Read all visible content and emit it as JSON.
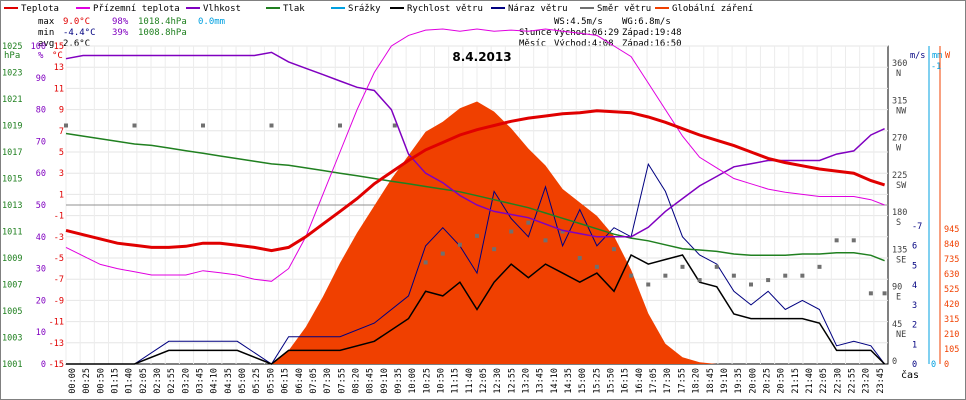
{
  "chart_data": {
    "type": "line",
    "title": "8.4.2013",
    "legend": [
      {
        "label": "Teplota",
        "color": "#e00000"
      },
      {
        "label": "Přízemní teplota",
        "color": "#e000e0"
      },
      {
        "label": "Vlhkost",
        "color": "#8000c0"
      },
      {
        "label": "Tlak",
        "color": "#208020"
      },
      {
        "label": "Srážky",
        "color": "#00a0e0"
      },
      {
        "label": "Rychlost větru",
        "color": "#000000"
      },
      {
        "label": "Náraz větru",
        "color": "#000080"
      },
      {
        "label": "Směr větru",
        "color": "#707070"
      },
      {
        "label": "Globální záření",
        "color": "#f04000"
      }
    ],
    "stats": {
      "max": {
        "label": "max",
        "temp": "9.0°C",
        "hum": "98%",
        "press": "1018.4hPa",
        "rain": "0.0mm"
      },
      "min": {
        "label": "min",
        "temp": "-4.4°C",
        "hum": "39%",
        "press": "1008.8hPa"
      },
      "avg": {
        "label": "avg",
        "temp": "2.6°C"
      },
      "ws": "WS:4.5m/s",
      "wg": "WG:6.8m/s",
      "sun": {
        "label": "Slunce",
        "rise": "Východ:06:29",
        "set": "Západ:19:48"
      },
      "moon": {
        "label": "Měsíc",
        "rise": "Východ:4:08",
        "set": "Západ:16:50"
      }
    },
    "axes": {
      "hpa": {
        "unit": "hPa",
        "ticks": [
          "1025",
          "1023",
          "1021",
          "1019",
          "1017",
          "1015",
          "1013",
          "1011",
          "1009",
          "1007",
          "1005",
          "1003",
          "1001"
        ],
        "range": [
          1001,
          1025
        ]
      },
      "pct": {
        "unit": "%",
        "ticks": [
          "100",
          "90",
          "80",
          "70",
          "60",
          "50",
          "40",
          "30",
          "20",
          "10",
          "0"
        ],
        "range": [
          0,
          100
        ]
      },
      "temp": {
        "unit": "°C",
        "ticks": [
          "15",
          "13",
          "11",
          "9",
          "7",
          "5",
          "3",
          "1",
          "-1",
          "-3",
          "-5",
          "-7",
          "-9",
          "-11",
          "-13",
          "-15"
        ],
        "range": [
          -15,
          15
        ]
      },
      "dir": {
        "ticks": [
          "360 N",
          "315 NW",
          "270 W",
          "225 SW",
          "180 S",
          "135 SE",
          "90 E",
          "45 NE",
          "0"
        ],
        "range": [
          0,
          360
        ]
      },
      "wind": {
        "unit": "m/s",
        "ticks": [
          "-7",
          "6",
          "5",
          "4",
          "3",
          "2",
          "1",
          "0"
        ],
        "range": [
          0,
          7
        ]
      },
      "rain": {
        "unit": "mm",
        "ticks": [
          "-1",
          "0"
        ],
        "range": [
          0,
          1
        ]
      },
      "rad": {
        "unit": "W",
        "ticks": [
          "945",
          "840",
          "735",
          "630",
          "525",
          "420",
          "315",
          "210",
          "105",
          "0"
        ],
        "range": [
          0,
          945
        ]
      }
    },
    "x_unit": "čas",
    "x_ticks": [
      "00:00",
      "00:25",
      "00:50",
      "01:15",
      "01:40",
      "02:05",
      "02:30",
      "02:55",
      "03:20",
      "03:45",
      "04:10",
      "04:35",
      "05:00",
      "05:25",
      "05:50",
      "06:15",
      "06:40",
      "07:05",
      "07:30",
      "07:55",
      "08:20",
      "08:45",
      "09:10",
      "09:35",
      "10:00",
      "10:25",
      "10:50",
      "11:15",
      "11:40",
      "12:05",
      "12:30",
      "12:55",
      "13:20",
      "13:45",
      "14:10",
      "14:35",
      "15:00",
      "15:25",
      "15:50",
      "16:15",
      "16:40",
      "17:05",
      "17:30",
      "17:55",
      "18:20",
      "18:45",
      "19:10",
      "19:35",
      "20:00",
      "20:25",
      "20:50",
      "21:15",
      "21:40",
      "22:05",
      "22:30",
      "22:55",
      "23:20",
      "23:45"
    ],
    "series": [
      {
        "name": "Teplota",
        "color": "#e00000",
        "x_hours": [
          0,
          0.5,
          1,
          1.5,
          2,
          2.5,
          3,
          3.5,
          4,
          4.5,
          5,
          5.5,
          6,
          6.5,
          7,
          7.5,
          8,
          8.5,
          9,
          9.5,
          10,
          10.5,
          11,
          11.5,
          12,
          12.5,
          13,
          13.5,
          14,
          14.5,
          15,
          15.5,
          16,
          16.5,
          17,
          17.5,
          18,
          18.5,
          19,
          19.5,
          20,
          20.5,
          21,
          21.5,
          22,
          22.5,
          23,
          23.5,
          23.9
        ],
        "values": [
          -2.4,
          -2.8,
          -3.2,
          -3.6,
          -3.8,
          -4.0,
          -4.0,
          -3.9,
          -3.6,
          -3.6,
          -3.8,
          -4.0,
          -4.3,
          -4.0,
          -3.0,
          -1.8,
          -0.6,
          0.6,
          2.0,
          3.1,
          4.2,
          5.2,
          5.9,
          6.6,
          7.1,
          7.5,
          7.9,
          8.2,
          8.4,
          8.6,
          8.7,
          8.9,
          8.8,
          8.7,
          8.3,
          7.8,
          7.2,
          6.6,
          6.1,
          5.6,
          5.0,
          4.4,
          4.0,
          3.7,
          3.4,
          3.2,
          3.0,
          2.3,
          1.9
        ]
      },
      {
        "name": "Přízemní teplota",
        "color": "#e000e0",
        "x_hours": [
          0,
          0.5,
          1,
          1.5,
          2,
          2.5,
          3,
          3.5,
          4,
          4.5,
          5,
          5.5,
          6,
          6.5,
          7,
          7.5,
          8,
          8.5,
          9,
          9.5,
          10,
          10.5,
          11,
          11.5,
          12,
          12.5,
          13,
          13.5,
          14,
          14.5,
          15,
          15.5,
          16,
          16.5,
          17,
          17.5,
          18,
          18.5,
          19,
          19.5,
          20,
          20.5,
          21,
          21.5,
          22,
          22.5,
          23,
          23.5,
          23.9
        ],
        "values": [
          -4.0,
          -4.8,
          -5.6,
          -6.0,
          -6.3,
          -6.6,
          -6.6,
          -6.6,
          -6.2,
          -6.4,
          -6.6,
          -7.0,
          -7.2,
          -6.0,
          -3.0,
          1.0,
          5.0,
          9.0,
          12.5,
          15.0,
          16.0,
          16.5,
          16.6,
          16.4,
          16.6,
          16.4,
          16.5,
          16.4,
          16.6,
          16.4,
          16.2,
          16.0,
          15.0,
          14.0,
          11.5,
          9.0,
          6.5,
          4.5,
          3.5,
          2.5,
          2.0,
          1.5,
          1.2,
          1.0,
          0.8,
          0.8,
          0.8,
          0.5,
          0.0
        ]
      },
      {
        "name": "Vlhkost",
        "color": "#8000c0",
        "x_hours": [
          0,
          0.5,
          1,
          1.5,
          2,
          2.5,
          3,
          3.5,
          4,
          4.5,
          5,
          5.5,
          6,
          6.5,
          7,
          7.5,
          8,
          8.5,
          9,
          9.5,
          10,
          10.5,
          11,
          11.5,
          12,
          12.5,
          13,
          13.5,
          14,
          14.5,
          15,
          15.5,
          16,
          16.5,
          17,
          17.5,
          18,
          18.5,
          19,
          19.5,
          20,
          20.5,
          21,
          21.5,
          22,
          22.5,
          23,
          23.5,
          23.9
        ],
        "values": [
          96,
          97,
          97,
          97,
          97,
          97,
          97,
          97,
          97,
          97,
          97,
          97,
          98,
          95,
          93,
          91,
          89,
          87,
          86,
          80,
          66,
          60,
          57,
          53,
          50,
          48,
          47,
          46,
          44,
          42,
          41,
          40,
          40,
          40,
          43,
          48,
          52,
          56,
          59,
          62,
          63,
          64,
          64,
          64,
          64,
          66,
          67,
          72,
          74
        ]
      },
      {
        "name": "Tlak",
        "color": "#208020",
        "x_hours": [
          0,
          0.5,
          1,
          1.5,
          2,
          2.5,
          3,
          3.5,
          4,
          4.5,
          5,
          5.5,
          6,
          6.5,
          7,
          7.5,
          8,
          8.5,
          9,
          9.5,
          10,
          10.5,
          11,
          11.5,
          12,
          12.5,
          13,
          13.5,
          14,
          14.5,
          15,
          15.5,
          16,
          16.5,
          17,
          17.5,
          18,
          18.5,
          19,
          19.5,
          20,
          20.5,
          21,
          21.5,
          22,
          22.5,
          23,
          23.5,
          23.9
        ],
        "values": [
          1018.4,
          1018.2,
          1018.0,
          1017.8,
          1017.6,
          1017.5,
          1017.3,
          1017.1,
          1016.9,
          1016.7,
          1016.5,
          1016.3,
          1016.1,
          1016.0,
          1015.8,
          1015.6,
          1015.4,
          1015.2,
          1015.0,
          1014.8,
          1014.6,
          1014.4,
          1014.2,
          1014.0,
          1013.7,
          1013.4,
          1013.1,
          1012.8,
          1012.4,
          1012.0,
          1011.6,
          1011.2,
          1010.8,
          1010.5,
          1010.3,
          1010.0,
          1009.7,
          1009.6,
          1009.5,
          1009.3,
          1009.2,
          1009.2,
          1009.2,
          1009.3,
          1009.3,
          1009.4,
          1009.4,
          1009.2,
          1008.8
        ]
      },
      {
        "name": "Rychlost větru",
        "color": "#000000",
        "x_hours": [
          0,
          1,
          2,
          3,
          4,
          5,
          6,
          6.5,
          7,
          8,
          9,
          10,
          10.5,
          11,
          11.5,
          12,
          12.5,
          13,
          13.5,
          14,
          14.5,
          15,
          15.5,
          16,
          16.5,
          17,
          17.5,
          18,
          18.5,
          19,
          19.5,
          20,
          20.5,
          21,
          21.5,
          22,
          22.5,
          23,
          23.5,
          23.9
        ],
        "values": [
          0,
          0,
          0,
          0.3,
          0.3,
          0.3,
          0,
          0.3,
          0.3,
          0.3,
          0.5,
          1.0,
          1.6,
          1.5,
          1.8,
          1.2,
          1.8,
          2.2,
          1.9,
          2.2,
          2.0,
          1.8,
          2.0,
          1.6,
          2.4,
          2.2,
          2.3,
          2.4,
          1.8,
          1.7,
          1.1,
          1.0,
          1.0,
          1.0,
          1.0,
          0.9,
          0.3,
          0.3,
          0.3,
          0
        ]
      },
      {
        "name": "Náraz větru",
        "color": "#000080",
        "x_hours": [
          0,
          1,
          2,
          3,
          4,
          5,
          6,
          6.5,
          7,
          8,
          9,
          10,
          10.5,
          11,
          11.5,
          12,
          12.5,
          13,
          13.5,
          14,
          14.5,
          15,
          15.5,
          16,
          16.5,
          17,
          17.5,
          18,
          18.5,
          19,
          19.5,
          20,
          20.5,
          21,
          21.5,
          22,
          22.5,
          23,
          23.5,
          23.9
        ],
        "values": [
          0,
          0,
          0,
          0.5,
          0.5,
          0.5,
          0,
          0.6,
          0.6,
          0.6,
          0.9,
          1.5,
          2.6,
          3.0,
          2.6,
          2.0,
          3.8,
          3.2,
          2.8,
          3.9,
          2.6,
          3.4,
          2.6,
          3.0,
          2.8,
          4.4,
          3.8,
          2.8,
          2.4,
          2.2,
          1.6,
          1.3,
          1.6,
          1.2,
          1.4,
          1.2,
          0.4,
          0.5,
          0.4,
          0
        ]
      },
      {
        "name": "Globální záření",
        "color": "#f04000",
        "x_hours": [
          6,
          6.5,
          7,
          7.5,
          8,
          8.5,
          9,
          9.5,
          10,
          10.5,
          11,
          11.5,
          12,
          12.5,
          13,
          13.5,
          14,
          14.5,
          15,
          15.5,
          16,
          16.5,
          17,
          17.5,
          18,
          18.5,
          19
        ],
        "values": [
          0,
          40,
          110,
          200,
          300,
          390,
          470,
          550,
          620,
          690,
          720,
          760,
          780,
          750,
          700,
          640,
          590,
          520,
          480,
          440,
          380,
          280,
          150,
          60,
          20,
          5,
          0
        ]
      },
      {
        "name": "Směr větru",
        "color": "#707070",
        "x_hours": [
          0,
          2,
          4,
          6,
          8,
          9.6,
          10.5,
          11,
          11.5,
          12,
          12.5,
          13,
          13.5,
          14,
          14.5,
          15,
          15.5,
          16,
          16.5,
          17,
          17.5,
          18,
          18.5,
          19,
          19.5,
          20,
          20.5,
          21,
          21.5,
          22,
          22.5,
          23,
          23.5,
          23.9
        ],
        "values": [
          270,
          270,
          270,
          270,
          270,
          270,
          115,
          125,
          135,
          145,
          130,
          150,
          160,
          140,
          150,
          120,
          110,
          130,
          100,
          90,
          100,
          110,
          95,
          110,
          100,
          90,
          95,
          100,
          100,
          110,
          140,
          140,
          80,
          80
        ]
      }
    ]
  }
}
